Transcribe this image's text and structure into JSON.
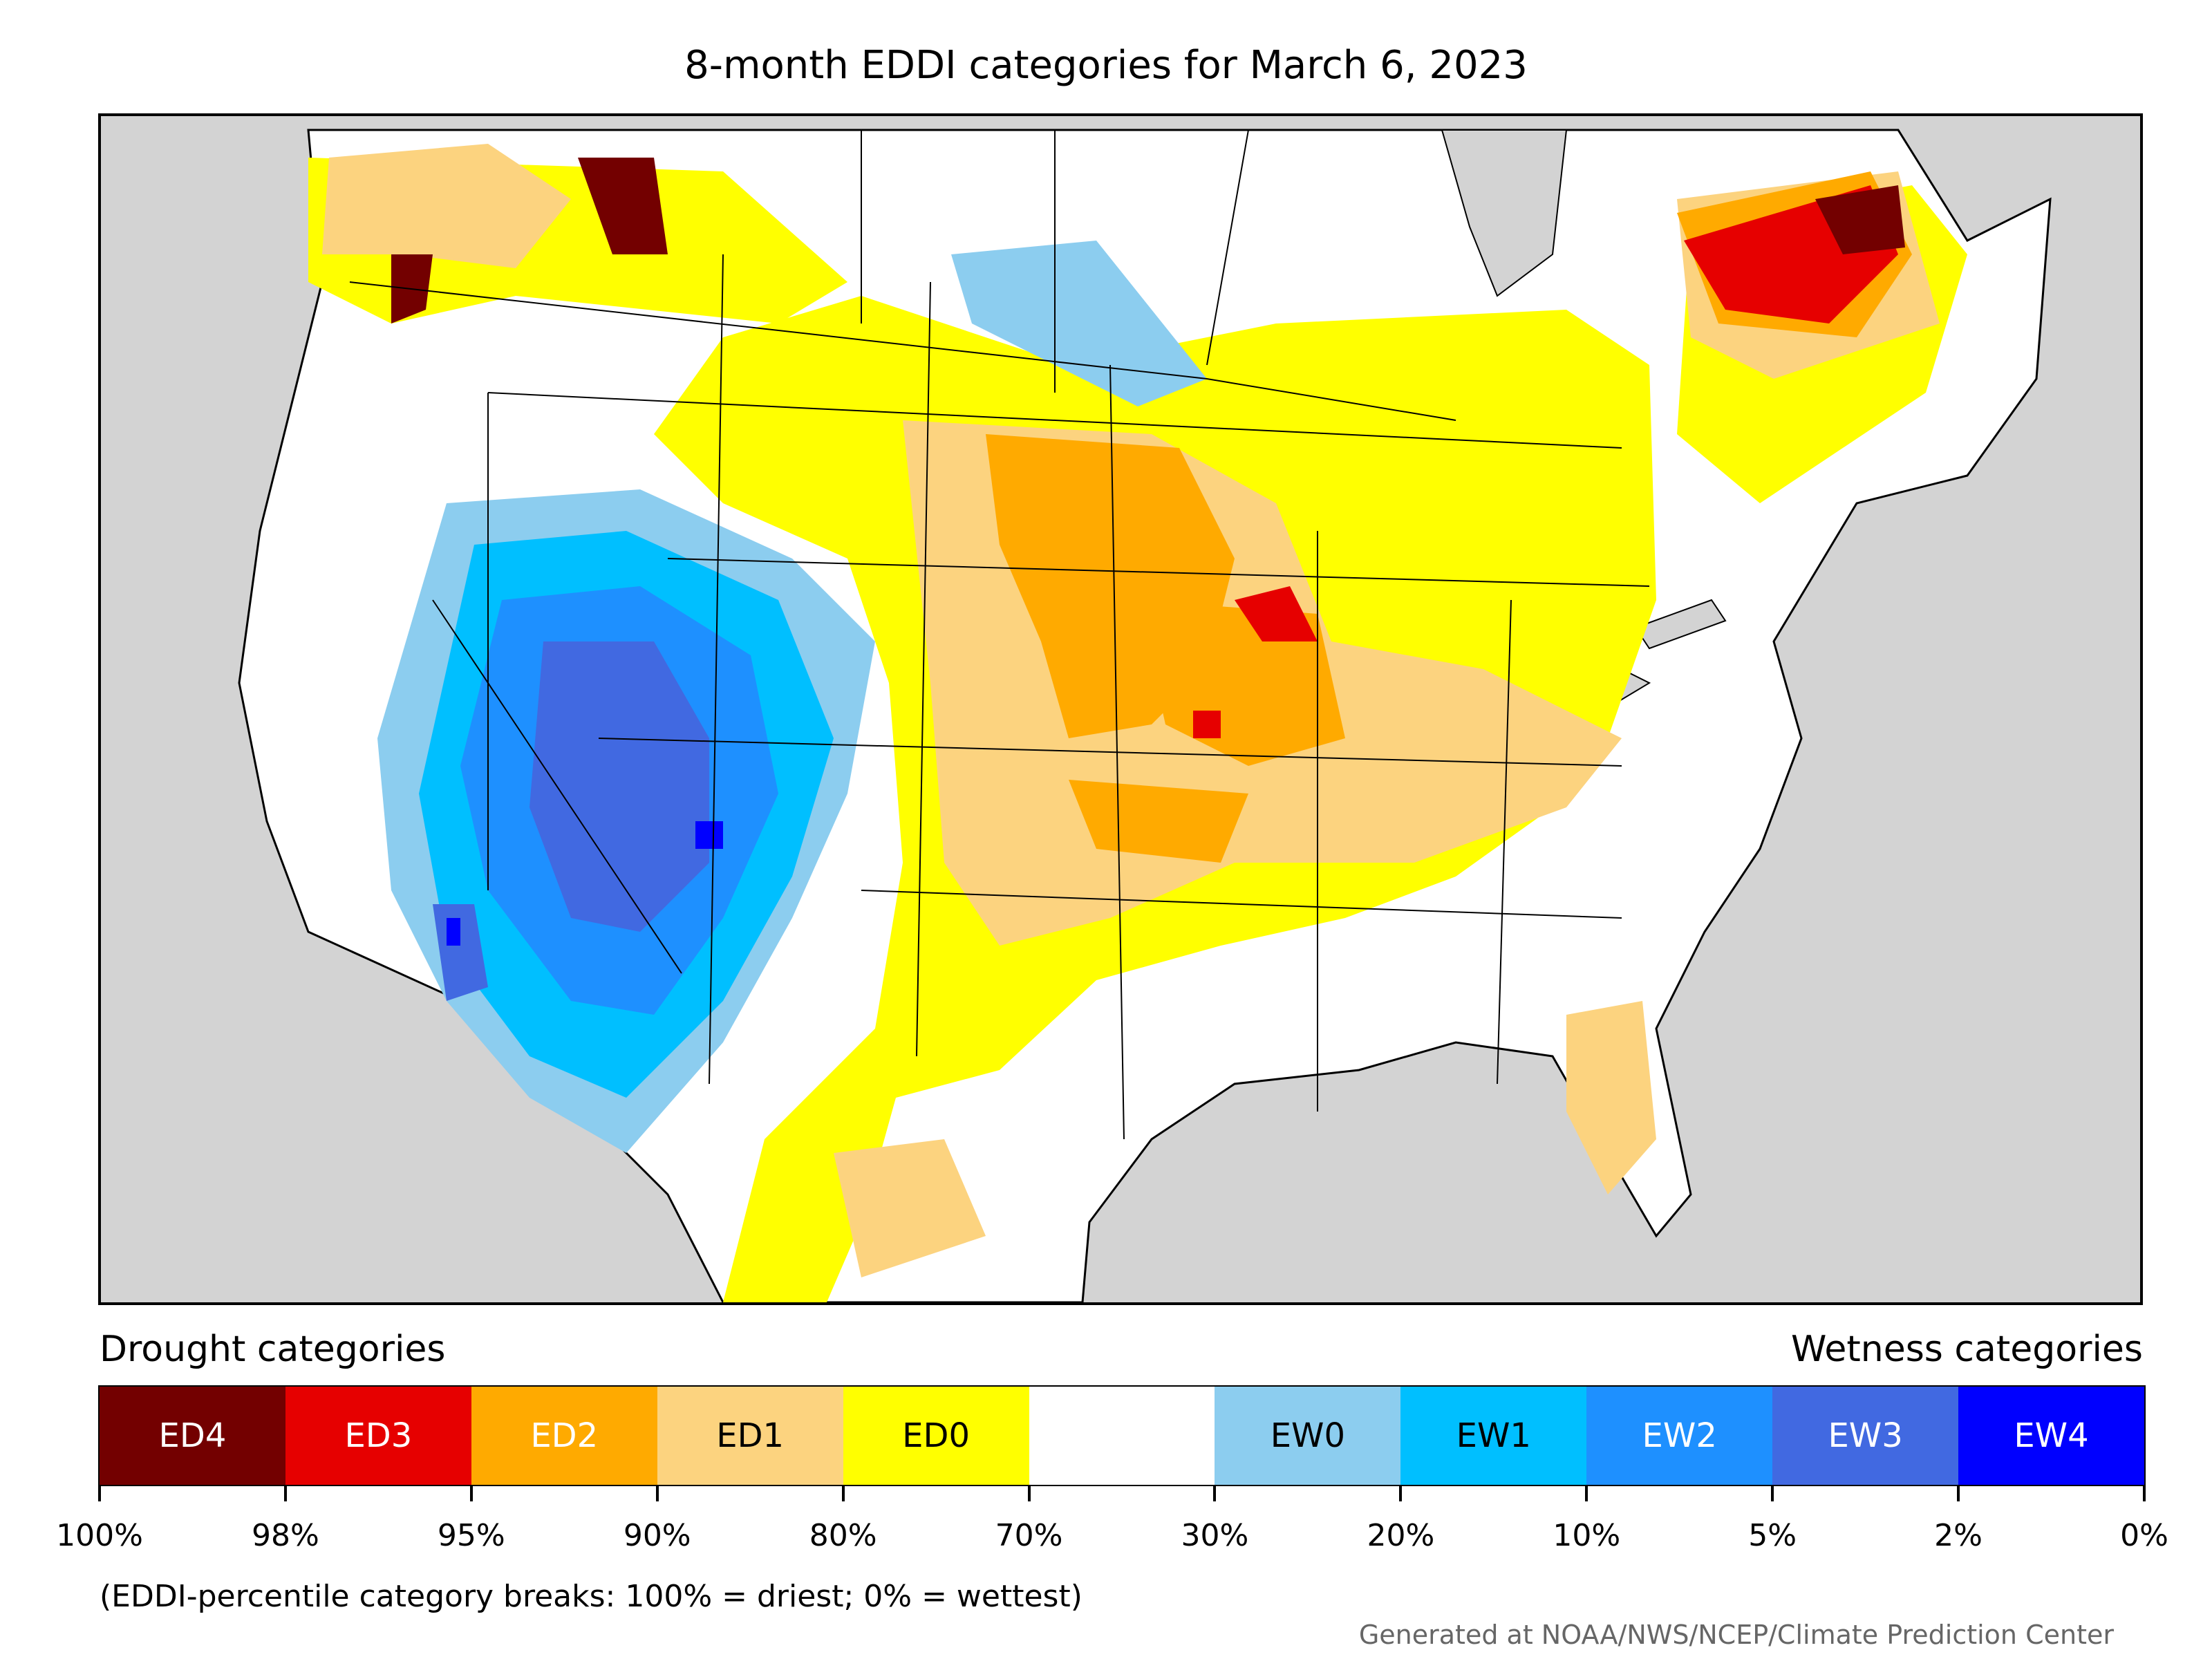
{
  "title": "8-month EDDI categories for March 6, 2023",
  "legend": {
    "drought_heading": "Drought categories",
    "wetness_heading": "Wetness categories",
    "categories": [
      {
        "label": "ED4",
        "color": "#730000",
        "text_color": "#ffffff"
      },
      {
        "label": "ED3",
        "color": "#e60000",
        "text_color": "#ffffff"
      },
      {
        "label": "ED2",
        "color": "#ffaa00",
        "text_color": "#ffffff"
      },
      {
        "label": "ED1",
        "color": "#fcd37f",
        "text_color": "#000000"
      },
      {
        "label": "ED0",
        "color": "#ffff00",
        "text_color": "#000000"
      },
      {
        "label": "",
        "color": "#ffffff",
        "text_color": "#000000"
      },
      {
        "label": "EW0",
        "color": "#8ccdef",
        "text_color": "#000000"
      },
      {
        "label": "EW1",
        "color": "#00bfff",
        "text_color": "#000000"
      },
      {
        "label": "EW2",
        "color": "#1e90ff",
        "text_color": "#ffffff"
      },
      {
        "label": "EW3",
        "color": "#4169e1",
        "text_color": "#ffffff"
      },
      {
        "label": "EW4",
        "color": "#0000ff",
        "text_color": "#ffffff"
      }
    ],
    "ticks": [
      "100%",
      "98%",
      "95%",
      "90%",
      "80%",
      "70%",
      "30%",
      "20%",
      "10%",
      "5%",
      "2%",
      "0%"
    ]
  },
  "note": "(EDDI-percentile category breaks: 100% = driest; 0% = wettest)",
  "credit": "Generated at NOAA/NWS/NCEP/Climate Prediction Center"
}
